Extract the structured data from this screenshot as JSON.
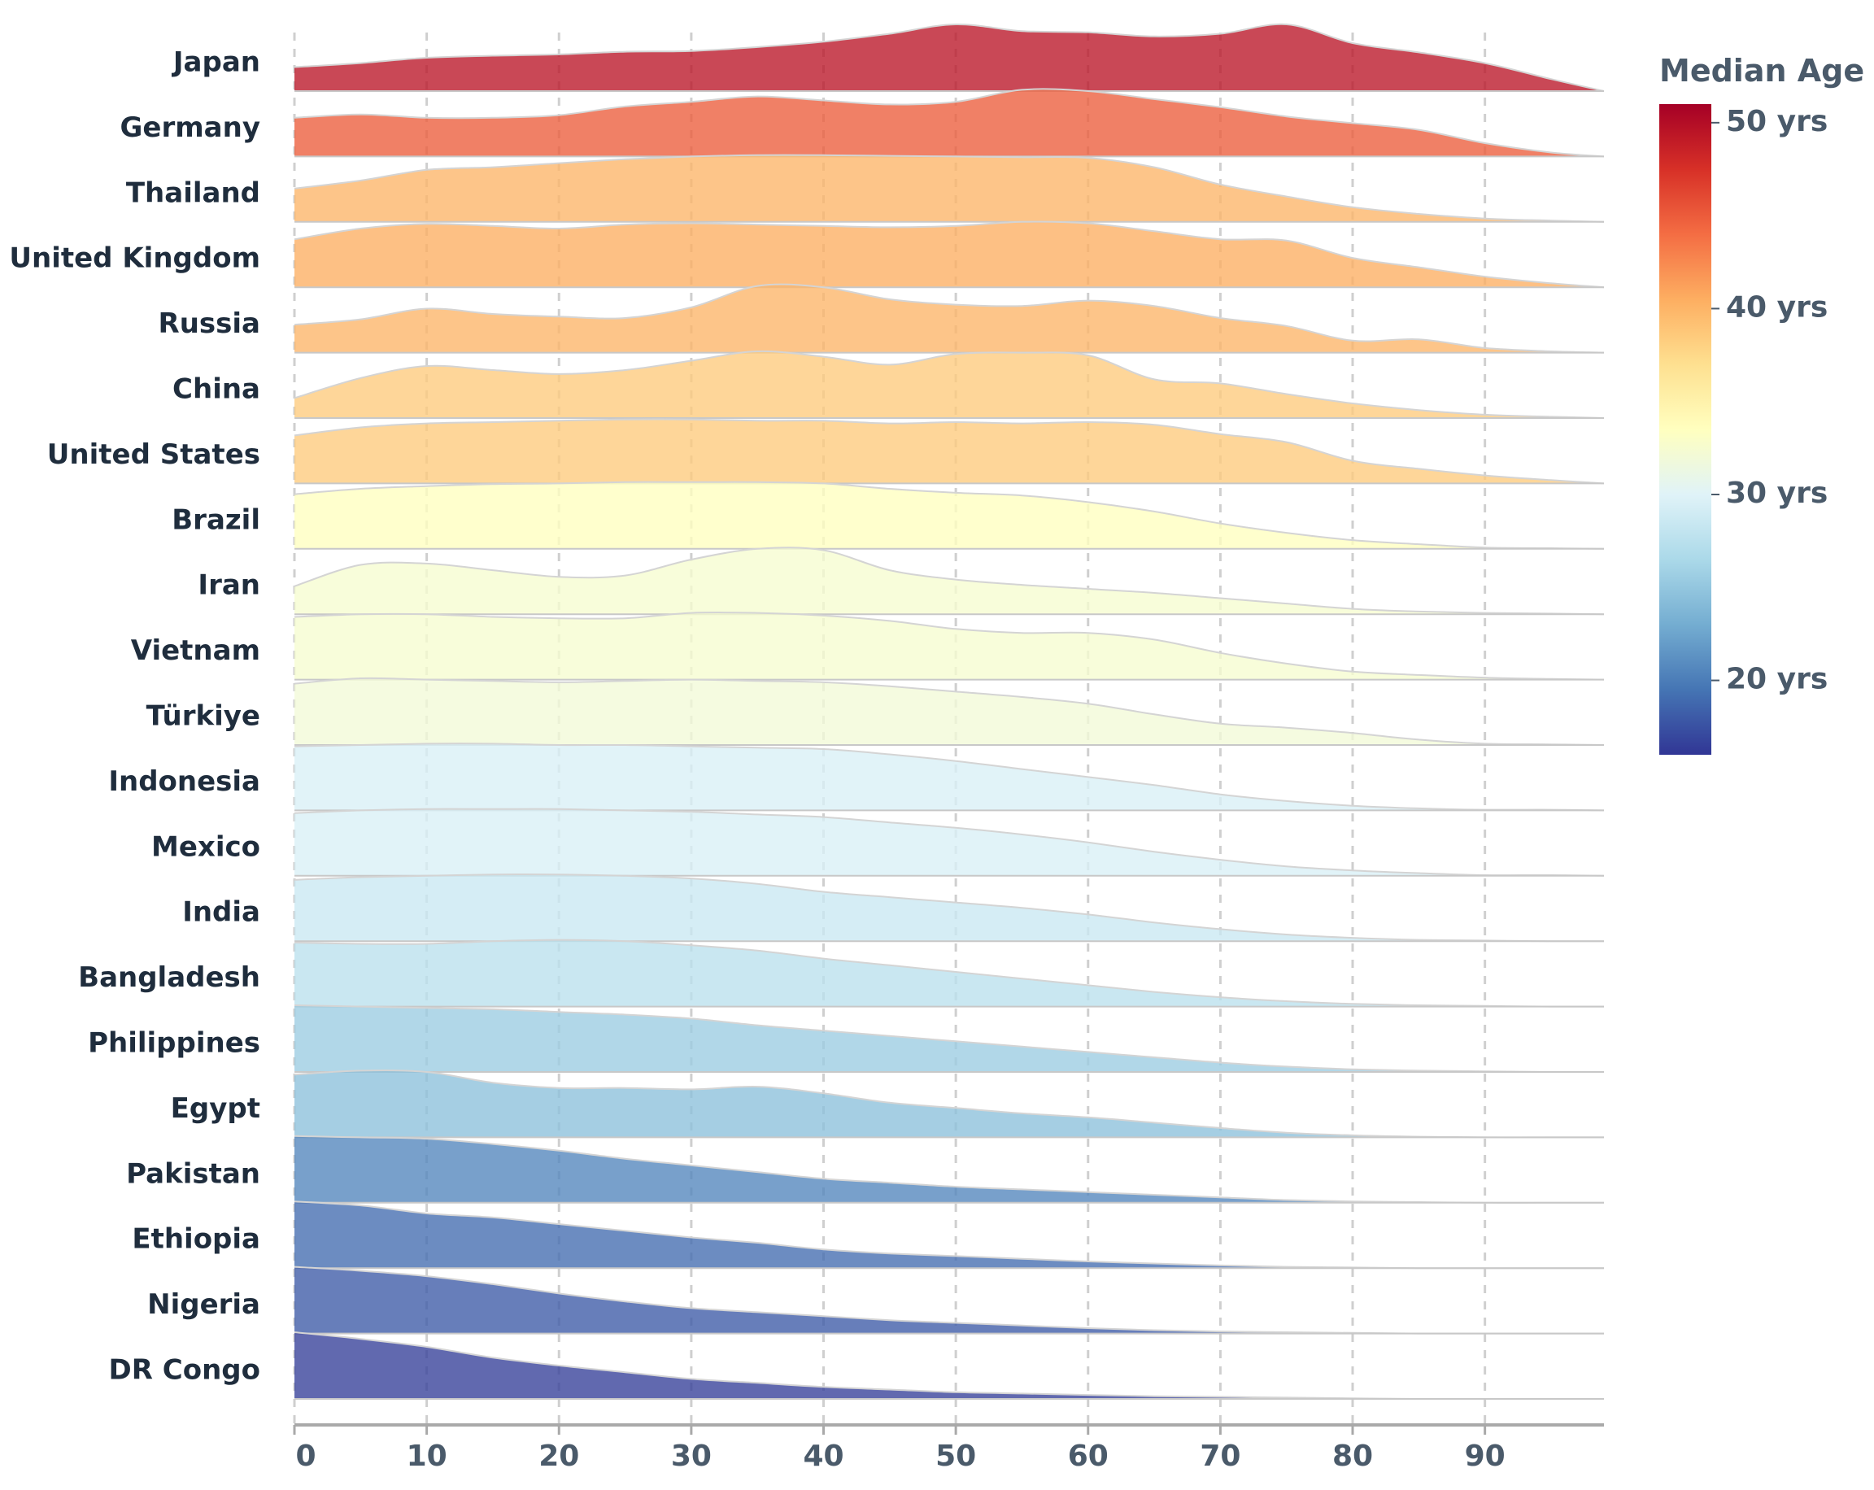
{
  "chart_data": {
    "type": "ridgeline",
    "title": "",
    "xlabel": "",
    "ylabel": "",
    "xlim": [
      0,
      99
    ],
    "x_ticks": [
      0,
      10,
      20,
      30,
      40,
      50,
      60,
      70,
      80,
      90
    ],
    "x_tick_labels": [
      "0",
      "10",
      "20",
      "30",
      "40",
      "50",
      "60",
      "70",
      "80",
      "90"
    ],
    "grid": "vertical dashed",
    "x_points": [
      0,
      5,
      10,
      15,
      20,
      25,
      30,
      35,
      40,
      45,
      50,
      55,
      60,
      65,
      70,
      75,
      80,
      85,
      90,
      95,
      99
    ],
    "series": [
      {
        "name": "Japan",
        "median_age": 49.5,
        "values": [
          0.36,
          0.42,
          0.5,
          0.53,
          0.55,
          0.59,
          0.6,
          0.66,
          0.74,
          0.86,
          1.0,
          0.9,
          0.88,
          0.82,
          0.86,
          1.0,
          0.72,
          0.58,
          0.42,
          0.18,
          0.0
        ]
      },
      {
        "name": "Germany",
        "median_age": 45.0,
        "values": [
          0.58,
          0.63,
          0.58,
          0.58,
          0.62,
          0.75,
          0.82,
          0.9,
          0.84,
          0.78,
          0.82,
          1.0,
          0.98,
          0.86,
          0.74,
          0.6,
          0.5,
          0.4,
          0.2,
          0.06,
          0.0
        ]
      },
      {
        "name": "Thailand",
        "median_age": 40.0,
        "values": [
          0.5,
          0.62,
          0.78,
          0.82,
          0.88,
          0.94,
          0.98,
          1.0,
          1.0,
          0.99,
          0.98,
          0.97,
          0.96,
          0.82,
          0.56,
          0.38,
          0.22,
          0.12,
          0.05,
          0.02,
          0.0
        ]
      },
      {
        "name": "United Kingdom",
        "median_age": 40.5,
        "values": [
          0.72,
          0.88,
          0.95,
          0.92,
          0.88,
          0.94,
          0.96,
          0.94,
          0.92,
          0.9,
          0.92,
          0.98,
          0.96,
          0.84,
          0.72,
          0.7,
          0.44,
          0.3,
          0.16,
          0.06,
          0.0
        ]
      },
      {
        "name": "Russia",
        "median_age": 40.0,
        "values": [
          0.42,
          0.5,
          0.66,
          0.58,
          0.54,
          0.52,
          0.68,
          1.0,
          0.98,
          0.8,
          0.72,
          0.7,
          0.78,
          0.7,
          0.52,
          0.4,
          0.18,
          0.2,
          0.07,
          0.02,
          0.0
        ]
      },
      {
        "name": "China",
        "median_age": 38.5,
        "values": [
          0.3,
          0.6,
          0.78,
          0.72,
          0.66,
          0.72,
          0.86,
          1.0,
          0.92,
          0.8,
          0.96,
          0.98,
          0.94,
          0.58,
          0.52,
          0.36,
          0.22,
          0.12,
          0.05,
          0.02,
          0.0
        ]
      },
      {
        "name": "United States",
        "median_age": 38.5,
        "values": [
          0.72,
          0.84,
          0.9,
          0.92,
          0.94,
          0.96,
          0.96,
          0.94,
          0.94,
          0.9,
          0.92,
          0.9,
          0.92,
          0.88,
          0.74,
          0.62,
          0.34,
          0.22,
          0.12,
          0.05,
          0.0
        ]
      },
      {
        "name": "Brazil",
        "median_age": 33.5,
        "values": [
          0.82,
          0.9,
          0.94,
          0.97,
          0.98,
          1.0,
          1.0,
          1.0,
          0.98,
          0.9,
          0.84,
          0.8,
          0.7,
          0.56,
          0.38,
          0.24,
          0.13,
          0.07,
          0.02,
          0.01,
          0.0
        ]
      },
      {
        "name": "Iran",
        "median_age": 32.5,
        "values": [
          0.42,
          0.74,
          0.76,
          0.66,
          0.56,
          0.58,
          0.82,
          0.98,
          0.96,
          0.66,
          0.52,
          0.44,
          0.38,
          0.32,
          0.24,
          0.16,
          0.08,
          0.04,
          0.02,
          0.01,
          0.0
        ]
      },
      {
        "name": "Vietnam",
        "median_age": 32.5,
        "values": [
          0.94,
          0.98,
          0.98,
          0.94,
          0.92,
          0.92,
          1.0,
          1.0,
          0.96,
          0.88,
          0.76,
          0.7,
          0.7,
          0.6,
          0.4,
          0.24,
          0.12,
          0.07,
          0.03,
          0.01,
          0.0
        ]
      },
      {
        "name": "Türkiye",
        "median_age": 32.0,
        "values": [
          0.92,
          1.0,
          0.98,
          0.96,
          0.94,
          0.96,
          0.98,
          0.96,
          0.94,
          0.88,
          0.8,
          0.72,
          0.62,
          0.46,
          0.32,
          0.26,
          0.18,
          0.08,
          0.02,
          0.01,
          0.0
        ]
      },
      {
        "name": "Indonesia",
        "median_age": 29.5,
        "values": [
          0.96,
          0.98,
          1.0,
          1.0,
          0.98,
          0.98,
          0.96,
          0.94,
          0.92,
          0.84,
          0.74,
          0.62,
          0.5,
          0.38,
          0.24,
          0.14,
          0.07,
          0.03,
          0.01,
          0.01,
          0.0
        ]
      },
      {
        "name": "Mexico",
        "median_age": 29.5,
        "values": [
          0.94,
          0.98,
          1.0,
          1.0,
          1.0,
          0.98,
          0.96,
          0.92,
          0.88,
          0.8,
          0.72,
          0.62,
          0.5,
          0.36,
          0.24,
          0.14,
          0.08,
          0.04,
          0.01,
          0.01,
          0.0
        ]
      },
      {
        "name": "India",
        "median_age": 28.5,
        "values": [
          0.92,
          0.96,
          0.98,
          1.0,
          1.0,
          0.98,
          0.94,
          0.86,
          0.74,
          0.66,
          0.58,
          0.5,
          0.4,
          0.28,
          0.18,
          0.1,
          0.05,
          0.02,
          0.01,
          0.0,
          0.0
        ]
      },
      {
        "name": "Bangladesh",
        "median_age": 27.5,
        "values": [
          0.96,
          0.94,
          0.94,
          0.98,
          1.0,
          0.98,
          0.92,
          0.84,
          0.72,
          0.62,
          0.52,
          0.42,
          0.32,
          0.22,
          0.14,
          0.08,
          0.04,
          0.02,
          0.01,
          0.0,
          0.0
        ]
      },
      {
        "name": "Philippines",
        "median_age": 25.5,
        "values": [
          1.0,
          0.98,
          0.96,
          0.94,
          0.9,
          0.86,
          0.8,
          0.7,
          0.62,
          0.54,
          0.46,
          0.38,
          0.3,
          0.22,
          0.14,
          0.08,
          0.04,
          0.02,
          0.01,
          0.0,
          0.0
        ]
      },
      {
        "name": "Egypt",
        "median_age": 24.5,
        "values": [
          0.94,
          1.0,
          0.98,
          0.82,
          0.74,
          0.74,
          0.72,
          0.76,
          0.66,
          0.52,
          0.44,
          0.36,
          0.3,
          0.22,
          0.14,
          0.07,
          0.03,
          0.01,
          0.0,
          0.0,
          0.0
        ]
      },
      {
        "name": "Pakistan",
        "median_age": 20.5,
        "values": [
          1.0,
          0.98,
          0.96,
          0.88,
          0.78,
          0.66,
          0.56,
          0.46,
          0.36,
          0.3,
          0.24,
          0.2,
          0.16,
          0.12,
          0.08,
          0.04,
          0.02,
          0.01,
          0.0,
          0.0,
          0.0
        ]
      },
      {
        "name": "Ethiopia",
        "median_age": 19.0,
        "values": [
          1.0,
          0.94,
          0.82,
          0.76,
          0.66,
          0.56,
          0.46,
          0.38,
          0.28,
          0.22,
          0.18,
          0.14,
          0.1,
          0.07,
          0.04,
          0.02,
          0.01,
          0.0,
          0.0,
          0.0,
          0.0
        ]
      },
      {
        "name": "Nigeria",
        "median_age": 18.0,
        "values": [
          1.0,
          0.94,
          0.86,
          0.74,
          0.6,
          0.48,
          0.38,
          0.32,
          0.26,
          0.2,
          0.16,
          0.12,
          0.08,
          0.05,
          0.03,
          0.02,
          0.01,
          0.0,
          0.0,
          0.0,
          0.0
        ]
      },
      {
        "name": "DR Congo",
        "median_age": 16.5,
        "values": [
          1.0,
          0.9,
          0.78,
          0.62,
          0.5,
          0.4,
          0.3,
          0.24,
          0.18,
          0.14,
          0.1,
          0.08,
          0.06,
          0.04,
          0.03,
          0.02,
          0.01,
          0.0,
          0.0,
          0.0,
          0.0
        ]
      }
    ],
    "colorbar": {
      "title": "Median Age",
      "range": [
        16,
        51
      ],
      "ticks": [
        20,
        30,
        40,
        50
      ],
      "tick_labels": [
        "20 yrs",
        "30 yrs",
        "40 yrs",
        "50 yrs"
      ],
      "colormap": "RdYlBu_r",
      "stops": [
        "#313695",
        "#4575b4",
        "#74add1",
        "#abd9e9",
        "#e0f3f8",
        "#ffffbf",
        "#fee090",
        "#fdae61",
        "#f46d43",
        "#d73027",
        "#a50026"
      ]
    },
    "legend": "right"
  }
}
